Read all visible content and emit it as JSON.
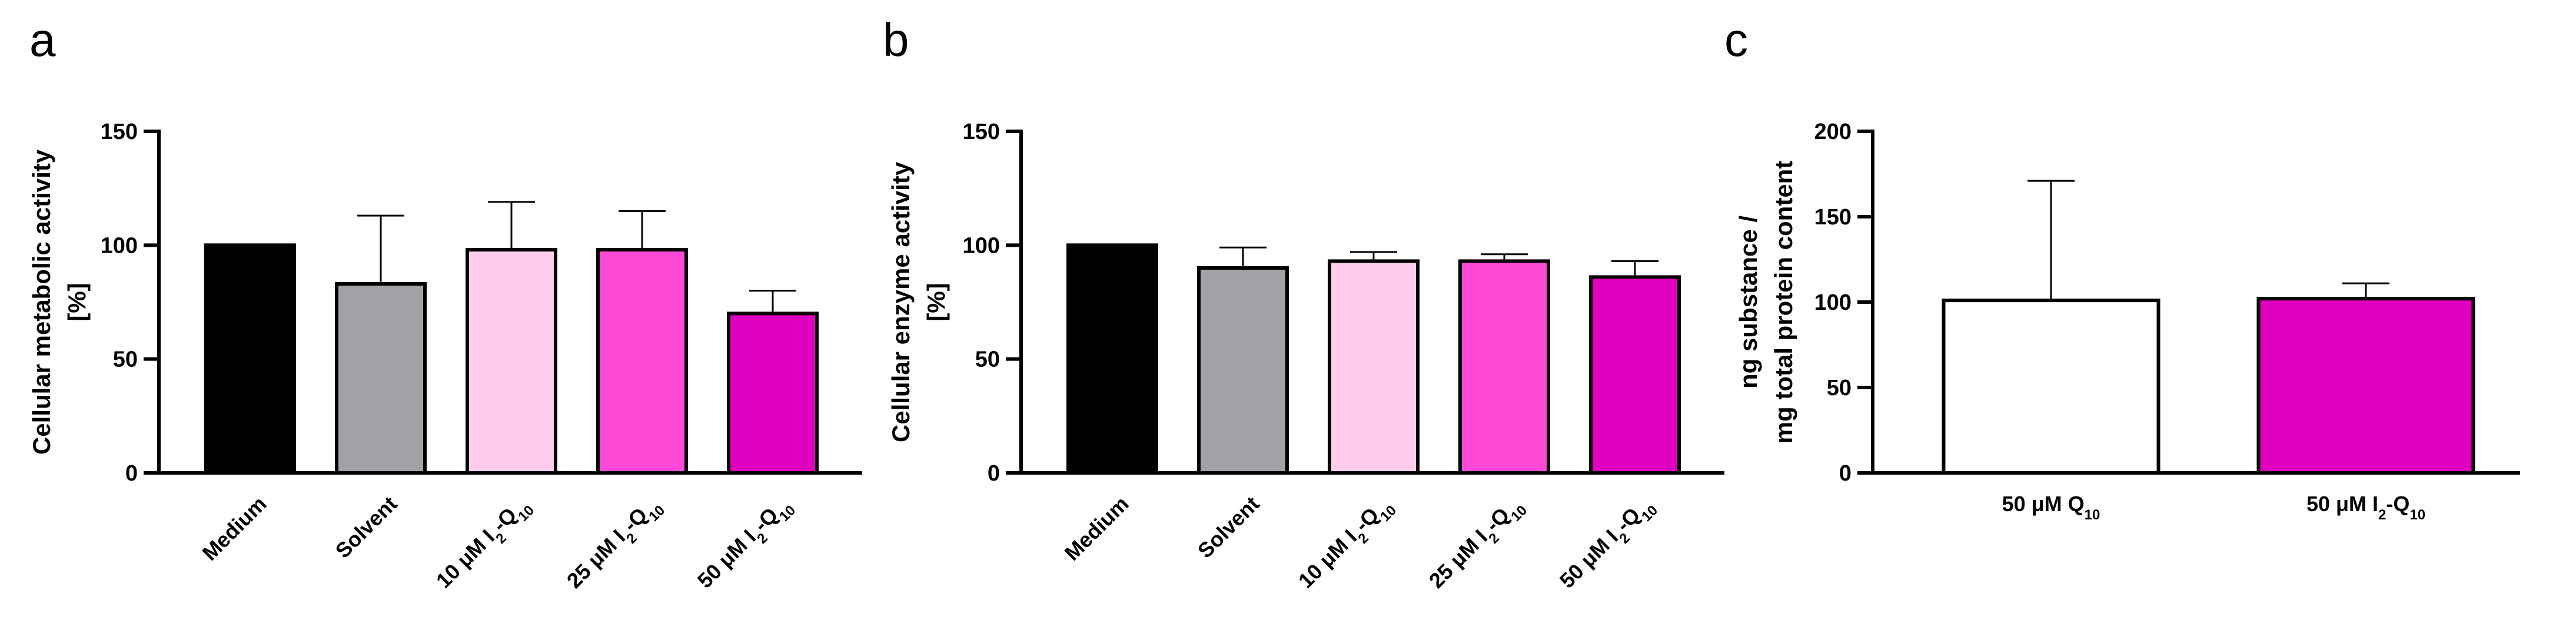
{
  "chart_data": [
    {
      "panel": "a",
      "type": "bar",
      "ylabel_lines": [
        "Cellular metabolic activity",
        "[%]"
      ],
      "ylim": [
        0,
        150
      ],
      "yticks": [
        0,
        50,
        100,
        150
      ],
      "categories": [
        {
          "parts": [
            {
              "t": "Medium"
            }
          ]
        },
        {
          "parts": [
            {
              "t": "Solvent"
            }
          ]
        },
        {
          "parts": [
            {
              "t": "10 μM  I"
            },
            {
              "t": "2",
              "sub": true
            },
            {
              "t": "-Q"
            },
            {
              "t": "10",
              "sub": true
            }
          ]
        },
        {
          "parts": [
            {
              "t": "25 μM  I"
            },
            {
              "t": "2",
              "sub": true
            },
            {
              "t": "-Q"
            },
            {
              "t": "10",
              "sub": true
            }
          ]
        },
        {
          "parts": [
            {
              "t": "50 μM  I"
            },
            {
              "t": "2",
              "sub": true
            },
            {
              "t": "-Q"
            },
            {
              "t": "10",
              "sub": true
            }
          ]
        }
      ],
      "values": [
        100,
        83,
        98,
        98,
        70
      ],
      "errors": [
        0,
        30,
        21,
        17,
        10
      ],
      "colors": [
        "#000000",
        "#a3a1a6",
        "#ffccee",
        "#ff4ad7",
        "#e000c0"
      ]
    },
    {
      "panel": "b",
      "type": "bar",
      "ylabel_lines": [
        "Cellular enzyme activity",
        "[%]"
      ],
      "ylim": [
        0,
        150
      ],
      "yticks": [
        0,
        50,
        100,
        150
      ],
      "categories": [
        {
          "parts": [
            {
              "t": "Medium"
            }
          ]
        },
        {
          "parts": [
            {
              "t": "Solvent"
            }
          ]
        },
        {
          "parts": [
            {
              "t": "10 μM  I"
            },
            {
              "t": "2",
              "sub": true
            },
            {
              "t": "-Q"
            },
            {
              "t": "10",
              "sub": true
            }
          ]
        },
        {
          "parts": [
            {
              "t": "25 μM  I"
            },
            {
              "t": "2",
              "sub": true
            },
            {
              "t": "-Q"
            },
            {
              "t": "10",
              "sub": true
            }
          ]
        },
        {
          "parts": [
            {
              "t": "50 μM  I"
            },
            {
              "t": "2",
              "sub": true
            },
            {
              "t": "-Q"
            },
            {
              "t": "10",
              "sub": true
            }
          ]
        }
      ],
      "values": [
        100,
        90,
        93,
        93,
        86
      ],
      "errors": [
        0,
        9,
        4,
        3,
        7
      ],
      "colors": [
        "#000000",
        "#a3a1a6",
        "#ffccee",
        "#ff4ad7",
        "#e000c0"
      ]
    },
    {
      "panel": "c",
      "type": "bar",
      "ylabel_lines": [
        "ng substance /",
        "mg total protein content"
      ],
      "ylim": [
        0,
        200
      ],
      "yticks": [
        0,
        50,
        100,
        150,
        200
      ],
      "categories": [
        {
          "parts": [
            {
              "t": "50 μM  Q"
            },
            {
              "t": "10",
              "sub": true
            }
          ]
        },
        {
          "parts": [
            {
              "t": "50 μM  I"
            },
            {
              "t": "2",
              "sub": true
            },
            {
              "t": "-Q"
            },
            {
              "t": "10",
              "sub": true
            }
          ]
        }
      ],
      "values": [
        101,
        102
      ],
      "errors": [
        70,
        9
      ],
      "colors": [
        "#ffffff",
        "#e000c0"
      ]
    }
  ]
}
